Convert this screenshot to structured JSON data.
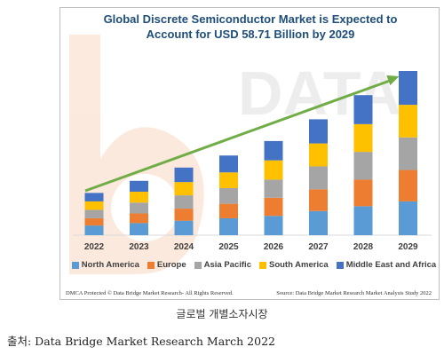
{
  "chart_data": {
    "type": "bar",
    "stacked": true,
    "title_lines": [
      "Global Discrete Semiconductor Market is Expected to",
      "Account for USD 58.71 Billion by 2029"
    ],
    "categories": [
      "2022",
      "2023",
      "2024",
      "2025",
      "2026",
      "2027",
      "2028",
      "2029"
    ],
    "series": [
      {
        "name": "North America",
        "color": "#5b9bd5",
        "values": [
          8,
          10,
          12,
          14,
          16,
          20,
          24,
          28
        ]
      },
      {
        "name": "Europe",
        "color": "#ed7d31",
        "values": [
          6,
          8,
          10,
          12,
          15,
          18,
          22,
          26
        ]
      },
      {
        "name": "Asia Pacific",
        "color": "#a5a5a5",
        "values": [
          7,
          9,
          11,
          13,
          15,
          19,
          23,
          27
        ]
      },
      {
        "name": "South America",
        "color": "#ffc000",
        "values": [
          7,
          9,
          11,
          13,
          16,
          19,
          23,
          27
        ]
      },
      {
        "name": "Middle East and Africa",
        "color": "#4472c4",
        "values": [
          7,
          9,
          12,
          14,
          16,
          20,
          24,
          28
        ]
      }
    ],
    "legend_position": "bottom",
    "grid": false,
    "annotations": [
      {
        "type": "trend-arrow",
        "color": "#70ad47",
        "direction": "up-right"
      }
    ]
  },
  "watermark_text": "DATA",
  "footer": {
    "left": "DMCA Protected © Data Bridge Market Research- All Rights Reserved.",
    "right": "Source: Data Bridge Market Research Market Analysis Study 2022"
  },
  "caption": "글로벌 개별소자시장",
  "source_line": "출처: Data Bridge Market Research March 2022"
}
